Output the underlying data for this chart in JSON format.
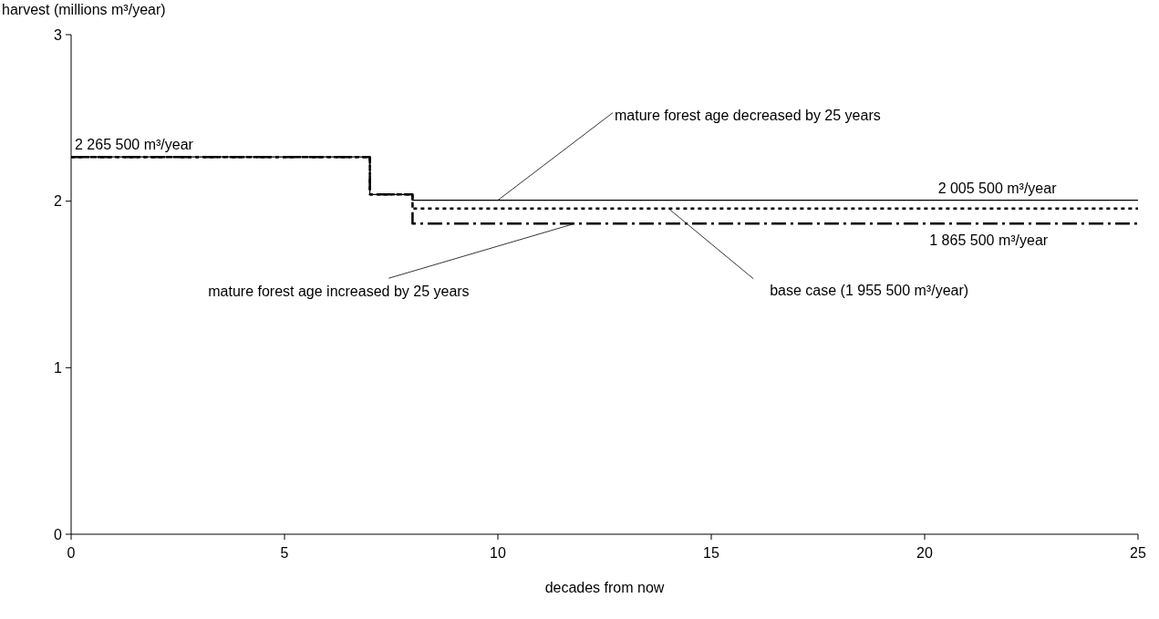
{
  "chart_data": {
    "type": "step",
    "xlabel": "decades from now",
    "ylabel": "harvest (millions m³/year)",
    "x": [
      0,
      7,
      8,
      25
    ],
    "xlim": [
      0,
      25
    ],
    "xticks": [
      0,
      5,
      10,
      15,
      20,
      25
    ],
    "ylim": [
      0,
      3
    ],
    "yticks": [
      0,
      1,
      2,
      3
    ],
    "grid": false,
    "series": [
      {
        "color": "#000000",
        "line_style": "solid",
        "values": [
          2.2655,
          2.04,
          2.0055,
          2.0055
        ]
      },
      {
        "color": "#000000",
        "line_style": "dotted",
        "values": [
          2.2655,
          2.04,
          1.9555,
          1.9555
        ]
      },
      {
        "color": "#000000",
        "line_style": "dashed",
        "values": [
          2.2655,
          2.04,
          1.8655,
          1.8655
        ]
      }
    ],
    "annotations": [
      {
        "text": "2 265 500 m³/year",
        "x": 0,
        "y": 2.2655
      },
      {
        "text": "mature forest age decreased by 25 years",
        "x": 10,
        "y": 2.0055
      },
      {
        "text": "2 005 500 m³/year",
        "x": 21.7,
        "y": 2.0055
      },
      {
        "text": "base case (1 955 500 m³/year)",
        "x": 14,
        "y": 1.9555
      },
      {
        "text": "1 865 500 m³/year",
        "x": 21.5,
        "y": 1.8655
      },
      {
        "text": "mature forest age increased by 25 years",
        "x": 11.8,
        "y": 1.8655
      }
    ]
  }
}
